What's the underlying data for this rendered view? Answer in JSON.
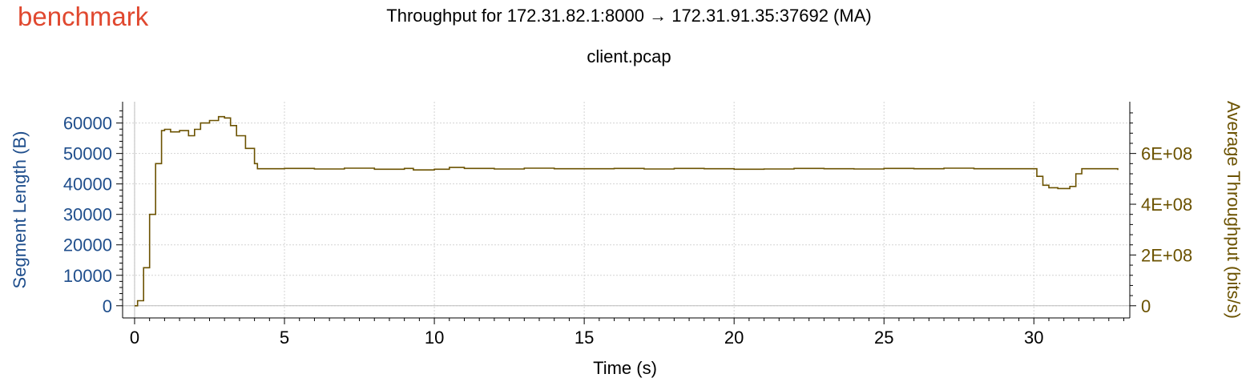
{
  "brand": {
    "text": "benchmark",
    "color": "#e0482f"
  },
  "chart_data": {
    "type": "line",
    "title": "Throughput for 172.31.82.1:8000 → 172.31.91.35:37692 (MA)",
    "subtitle": "client.pcap",
    "xlabel": "Time (s)",
    "ylabel_left": "Segment Length (B)",
    "ylabel_right": "Average Throughput (bits/s)",
    "xlim": [
      -0.4,
      33.2
    ],
    "ylim_left": [
      -4000,
      67000
    ],
    "ylim_right": [
      -48000000,
      804000000
    ],
    "x_ticks": [
      "0",
      "5",
      "10",
      "15",
      "20",
      "25",
      "30"
    ],
    "y_left_ticks": [
      "0",
      "10000",
      "20000",
      "30000",
      "40000",
      "50000",
      "60000"
    ],
    "y_right_ticks": [
      "0",
      "2E+08",
      "4E+08",
      "6E+08"
    ],
    "grid": true,
    "colors": {
      "left_axis": "#1f4e8c",
      "right_axis": "#6b5200",
      "series": "#6b5200"
    },
    "series": [
      {
        "axis": "right",
        "x": [
          0,
          0.1,
          0.3,
          0.5,
          0.7,
          0.9,
          1.0,
          1.2,
          1.5,
          1.8,
          2.0,
          2.2,
          2.5,
          2.8,
          3.0,
          3.2,
          3.4,
          3.7,
          4.0,
          4.1,
          4.3,
          5,
          6,
          7,
          8,
          9,
          9.3,
          10,
          10.5,
          11,
          12,
          13,
          14,
          15,
          16,
          17,
          18,
          19,
          20,
          21,
          22,
          23,
          24,
          25,
          26,
          27,
          28,
          29,
          29.9,
          30.1,
          30.3,
          30.5,
          30.8,
          31.0,
          31.2,
          31.4,
          31.6,
          32.0,
          32.5,
          32.8
        ],
        "y": [
          0,
          20000000,
          150000000,
          360000000,
          560000000,
          690000000,
          695000000,
          685000000,
          690000000,
          670000000,
          695000000,
          720000000,
          730000000,
          745000000,
          740000000,
          710000000,
          670000000,
          620000000,
          560000000,
          540000000,
          540000000,
          541000000,
          539000000,
          542000000,
          538000000,
          541000000,
          535000000,
          538000000,
          545000000,
          541000000,
          539000000,
          542000000,
          540000000,
          540000000,
          541000000,
          539000000,
          541000000,
          540000000,
          538000000,
          539000000,
          541000000,
          540000000,
          539000000,
          541000000,
          540000000,
          542000000,
          540000000,
          540000000,
          540000000,
          510000000,
          475000000,
          465000000,
          462000000,
          462000000,
          470000000,
          520000000,
          540000000,
          540000000,
          540000000,
          535000000
        ]
      }
    ]
  }
}
